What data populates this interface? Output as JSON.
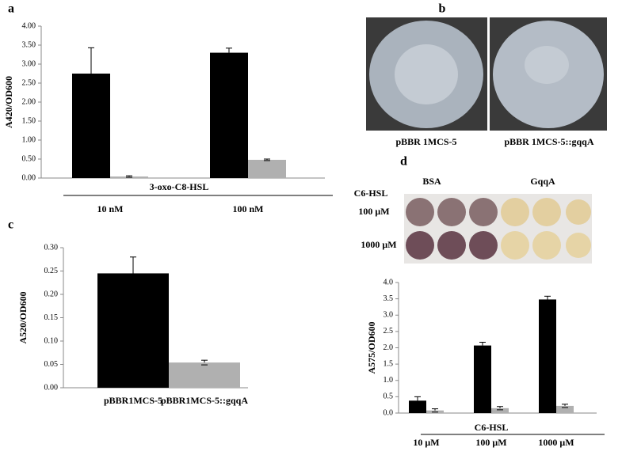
{
  "chart_data": [
    {
      "type": "bar",
      "panel": "a",
      "ylabel": "A420/OD600",
      "group_label": "3-oxo-C8-HSL",
      "categories": [
        "10 nM",
        "100 nM"
      ],
      "series": [
        {
          "color": "#000000",
          "values": [
            2.75,
            3.3
          ],
          "errors": [
            0.68,
            0.12
          ]
        },
        {
          "color": "#b0b0b0",
          "values": [
            0.04,
            0.48
          ],
          "errors": [
            0.02,
            0.02
          ]
        }
      ],
      "ylim": [
        0,
        4
      ],
      "yticks": [
        {
          "value": 0,
          "label": "0.00"
        },
        {
          "value": 0.5,
          "label": "0.50"
        },
        {
          "value": 1,
          "label": "1.00"
        },
        {
          "value": 1.5,
          "label": "1.50"
        },
        {
          "value": 2,
          "label": "2.00"
        },
        {
          "value": 2.5,
          "label": "2.50"
        },
        {
          "value": 3,
          "label": "3.00"
        },
        {
          "value": 3.5,
          "label": "3.50"
        },
        {
          "value": 4,
          "label": "4.00"
        }
      ]
    },
    {
      "type": "bar",
      "panel": "c",
      "ylabel": "A520/OD600",
      "categories": [
        "pBBR1MCS-5",
        "pBBR1MCS-5::gqqA"
      ],
      "series": [
        {
          "colors": [
            "#000000",
            "#b0b0b0"
          ],
          "values": [
            0.245,
            0.054
          ],
          "errors": [
            0.035,
            0.005
          ]
        }
      ],
      "ylim": [
        0,
        0.3
      ],
      "yticks": [
        {
          "value": 0,
          "label": "0.00"
        },
        {
          "value": 0.05,
          "label": "0.05"
        },
        {
          "value": 0.1,
          "label": "0.10"
        },
        {
          "value": 0.15,
          "label": "0.15"
        },
        {
          "value": 0.2,
          "label": "0.20"
        },
        {
          "value": 0.25,
          "label": "0.25"
        },
        {
          "value": 0.3,
          "label": "0.30"
        }
      ]
    },
    {
      "type": "bar",
      "panel": "d",
      "ylabel": "A575/OD600",
      "group_label": "C6-HSL",
      "categories": [
        "10 μM",
        "100 μM",
        "1000 μM"
      ],
      "series": [
        {
          "color": "#000000",
          "values": [
            0.38,
            2.07,
            3.48
          ],
          "errors": [
            0.12,
            0.1,
            0.1
          ]
        },
        {
          "color": "#b0b0b0",
          "values": [
            0.08,
            0.15,
            0.22
          ],
          "errors": [
            0.05,
            0.05,
            0.05
          ]
        }
      ],
      "ylim": [
        0,
        4
      ],
      "yticks": [
        {
          "value": 0,
          "label": "0.0"
        },
        {
          "value": 0.5,
          "label": "0.5"
        },
        {
          "value": 1,
          "label": "1.0"
        },
        {
          "value": 1.5,
          "label": "1.5"
        },
        {
          "value": 2,
          "label": "2.0"
        },
        {
          "value": 2.5,
          "label": "2.5"
        },
        {
          "value": 3,
          "label": "3.0"
        },
        {
          "value": 3.5,
          "label": "3.5"
        },
        {
          "value": 4,
          "label": "4.0"
        }
      ]
    }
  ],
  "plates": {
    "panel": "b",
    "captions": [
      "pBBR 1MCS-5",
      "pBBR 1MCS-5::gqqA"
    ]
  },
  "wells": {
    "columns": [
      "BSA",
      "GqqA"
    ],
    "row_header": "C6-HSL",
    "rows": [
      "100 μM",
      "1000 μM"
    ]
  }
}
